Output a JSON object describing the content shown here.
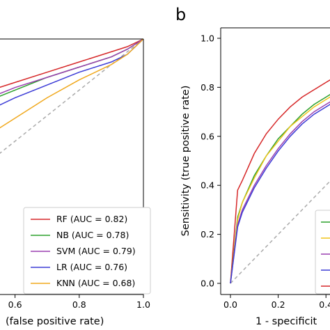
{
  "chart_data": [
    {
      "type": "line",
      "panel_label": "",
      "xlabel": "(false positive rate)",
      "ylabel": "",
      "xlim": [
        0,
        1
      ],
      "ylim": [
        0,
        1
      ],
      "xticks": [
        0.4,
        0.6,
        0.8,
        1.0
      ],
      "xtick_labels": [
        "",
        "0.6",
        "0.8",
        "1.0"
      ],
      "grid": false,
      "legend_position": "lower-right",
      "series": [
        {
          "name": "RF (AUC = 0.82)",
          "color": "#d62728",
          "x": [
            0,
            0.1,
            0.2,
            0.3,
            0.4,
            0.5,
            0.6,
            0.7,
            0.8,
            0.9,
            0.95,
            1.0
          ],
          "y": [
            0,
            0.42,
            0.58,
            0.67,
            0.74,
            0.79,
            0.83,
            0.87,
            0.91,
            0.95,
            0.97,
            1.0
          ]
        },
        {
          "name": "NB (AUC = 0.78)",
          "color": "#2ca02c",
          "x": [
            0,
            0.1,
            0.2,
            0.3,
            0.4,
            0.5,
            0.6,
            0.7,
            0.8,
            0.9,
            0.95,
            1.0
          ],
          "y": [
            0,
            0.36,
            0.52,
            0.62,
            0.69,
            0.75,
            0.8,
            0.85,
            0.89,
            0.93,
            0.96,
            1.0
          ]
        },
        {
          "name": "SVM (AUC = 0.79)",
          "color": "#9a3fb0",
          "x": [
            0,
            0.1,
            0.2,
            0.3,
            0.4,
            0.5,
            0.6,
            0.7,
            0.8,
            0.9,
            0.95,
            1.0
          ],
          "y": [
            0,
            0.37,
            0.53,
            0.63,
            0.7,
            0.76,
            0.81,
            0.85,
            0.89,
            0.93,
            0.96,
            1.0
          ]
        },
        {
          "name": "LR (AUC = 0.76)",
          "color": "#3b3bd6",
          "x": [
            0,
            0.1,
            0.2,
            0.3,
            0.4,
            0.5,
            0.6,
            0.7,
            0.8,
            0.9,
            0.95,
            1.0
          ],
          "y": [
            0,
            0.3,
            0.45,
            0.56,
            0.64,
            0.71,
            0.77,
            0.82,
            0.87,
            0.91,
            0.94,
            1.0
          ]
        },
        {
          "name": "KNN (AUC = 0.68)",
          "color": "#f0a81c",
          "x": [
            0,
            0.1,
            0.2,
            0.3,
            0.4,
            0.5,
            0.6,
            0.7,
            0.8,
            0.9,
            0.95,
            1.0
          ],
          "y": [
            0,
            0.16,
            0.3,
            0.42,
            0.52,
            0.61,
            0.69,
            0.77,
            0.84,
            0.9,
            0.94,
            1.0
          ]
        }
      ],
      "diagonal": {
        "style": "dashed",
        "color": "#aaaaaa"
      }
    },
    {
      "type": "line",
      "panel_label": "b",
      "xlabel": "1 - specificit",
      "ylabel": "Sensitivity (true positive rate)",
      "xlim": [
        0,
        1
      ],
      "ylim": [
        0,
        1
      ],
      "xticks": [
        0.0,
        0.2,
        0.4
      ],
      "xtick_labels": [
        "0.0",
        "0.2",
        "0.4"
      ],
      "yticks": [
        0.0,
        0.2,
        0.4,
        0.6,
        0.8,
        1.0
      ],
      "ytick_labels": [
        "0.0",
        "0.2",
        "0.4",
        "0.6",
        "0.8",
        "1.0"
      ],
      "grid": false,
      "series": [
        {
          "color": "#d62728",
          "x": [
            0,
            0.03,
            0.05,
            0.1,
            0.15,
            0.2,
            0.25,
            0.3,
            0.35,
            0.4,
            0.45
          ],
          "y": [
            0,
            0.38,
            0.42,
            0.53,
            0.61,
            0.67,
            0.72,
            0.76,
            0.79,
            0.82,
            0.85
          ]
        },
        {
          "color": "#2ca02c",
          "x": [
            0,
            0.03,
            0.05,
            0.1,
            0.15,
            0.2,
            0.25,
            0.3,
            0.35,
            0.4,
            0.45
          ],
          "y": [
            0,
            0.27,
            0.33,
            0.44,
            0.52,
            0.59,
            0.64,
            0.69,
            0.73,
            0.76,
            0.79
          ]
        },
        {
          "color": "#f0c419",
          "x": [
            0,
            0.03,
            0.05,
            0.1,
            0.15,
            0.2,
            0.25,
            0.3,
            0.35,
            0.4,
            0.45
          ],
          "y": [
            0,
            0.26,
            0.33,
            0.43,
            0.52,
            0.58,
            0.64,
            0.68,
            0.72,
            0.75,
            0.78
          ]
        },
        {
          "color": "#9a3fb0",
          "x": [
            0,
            0.03,
            0.05,
            0.1,
            0.15,
            0.2,
            0.25,
            0.3,
            0.35,
            0.4,
            0.45
          ],
          "y": [
            0,
            0.24,
            0.3,
            0.4,
            0.48,
            0.55,
            0.61,
            0.66,
            0.7,
            0.73,
            0.76
          ]
        },
        {
          "color": "#3b3bd6",
          "x": [
            0,
            0.03,
            0.05,
            0.1,
            0.15,
            0.2,
            0.25,
            0.3,
            0.35,
            0.4,
            0.45
          ],
          "y": [
            0,
            0.23,
            0.29,
            0.39,
            0.47,
            0.54,
            0.6,
            0.65,
            0.69,
            0.72,
            0.75
          ]
        }
      ],
      "legend_colors": [
        "#2ca02c",
        "#f0c419",
        "#9a3fb0",
        "#3b3bd6",
        "#d62728"
      ],
      "diagonal": {
        "style": "dashed",
        "color": "#aaaaaa"
      }
    }
  ]
}
